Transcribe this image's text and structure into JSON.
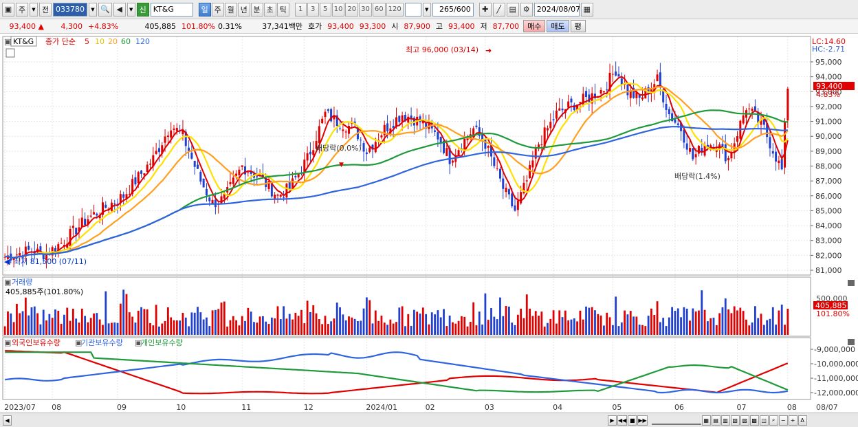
{
  "toolbar": {
    "market_select": "주",
    "prev_label": "전",
    "stock_code": "033780",
    "new_badge": "신",
    "stock_name": "KT&G",
    "periods": [
      "일",
      "주",
      "월",
      "년",
      "분",
      "초",
      "틱"
    ],
    "active_period": "일",
    "intervals": [
      "1",
      "3",
      "5",
      "10",
      "20",
      "30",
      "60",
      "120"
    ],
    "count": "265",
    "count_max": "/600",
    "date": "2024/08/07"
  },
  "quote": {
    "price": "93,400",
    "change_arrow": "▲",
    "change": "4,300",
    "change_pct": "+4.83%",
    "volume": "405,885",
    "volume_ratio": "101.80%",
    "turnover": "0.31%",
    "amount": "37,341백만",
    "bid_label": "호가",
    "ask": "93,400",
    "bid": "93,300",
    "open_label": "시",
    "open": "87,900",
    "high_label": "고",
    "high": "93,400",
    "low_label": "저",
    "low": "87,700",
    "buy_label": "매수",
    "sell_label": "매도",
    "eval_label": "평"
  },
  "price_panel": {
    "name": "KT&G",
    "ma_title": "종가 단순",
    "ma_periods": [
      "5",
      "10",
      "20",
      "60",
      "120"
    ],
    "ma_colors": [
      "#e00000",
      "#ffe000",
      "#ff9f1f",
      "#1f9a3a",
      "#2f64e0"
    ],
    "lc": "LC:14.60",
    "hc": "HC:-2.71",
    "last_price_label": "93,400",
    "last_pct_label": "4.83%",
    "max_annotation": "최고 96,000 (03/14)",
    "min_annotation": "최저 81,500 (07/11)",
    "dividend_1": "배당락(0.0%)",
    "dividend_2": "배당락(1.4%)",
    "y_ticks": [
      "95,000",
      "94,000",
      "93,000",
      "92,000",
      "91,000",
      "90,000",
      "89,000",
      "88,000",
      "87,000",
      "86,000",
      "85,000",
      "84,000",
      "83,000",
      "82,000",
      "81,000"
    ]
  },
  "volume_panel": {
    "title": "거래량",
    "value": "405,885주(101.80%)",
    "y_tick": "500,000",
    "last_value": "405,885",
    "last_pct": "101.80%"
  },
  "holding_panel": {
    "legends": [
      "외국인보유수량",
      "기관보유수량",
      "개인보유수량"
    ],
    "colors": [
      "#e00000",
      "#2f64e0",
      "#1f9a3a"
    ],
    "y_ticks": [
      "-9,000,000",
      "-10,000,000",
      "-11,000,000",
      "-12,000,000"
    ]
  },
  "x_axis": {
    "labels": [
      "2023/07",
      "08",
      "09",
      "10",
      "11",
      "12",
      "2024/01",
      "02",
      "03",
      "04",
      "05",
      "06",
      "07",
      "08"
    ],
    "right_label": "08/07"
  }
}
